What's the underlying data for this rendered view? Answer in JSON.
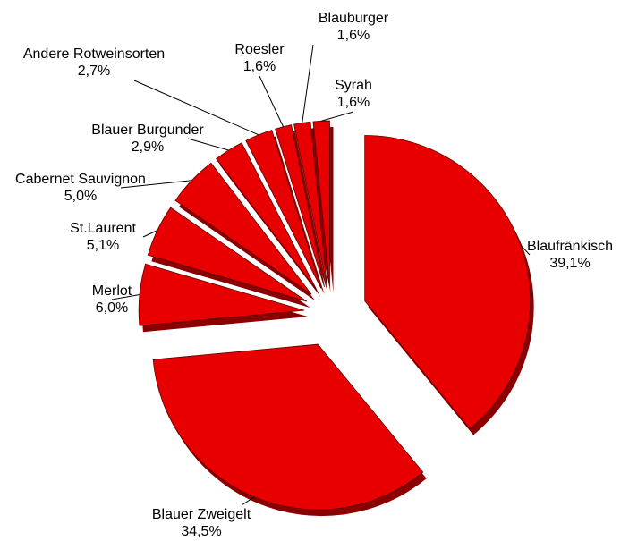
{
  "chart_data": {
    "type": "pie",
    "categories": [
      "Blaufränkisch",
      "Blauer Zweigelt",
      "Merlot",
      "St.Laurent",
      "Cabernet Sauvignon",
      "Blauer Burgunder",
      "Andere Rotweinsorten",
      "Roesler",
      "Blauburger",
      "Syrah"
    ],
    "values": [
      39.1,
      34.5,
      6.0,
      5.1,
      5.0,
      2.9,
      2.7,
      1.6,
      1.6,
      1.6
    ],
    "value_labels": [
      "39,1%",
      "34,5%",
      "6,0%",
      "5,1%",
      "5,0%",
      "2,9%",
      "2,7%",
      "1,6%",
      "1,6%",
      "1,6%"
    ],
    "color": "#e80000"
  }
}
